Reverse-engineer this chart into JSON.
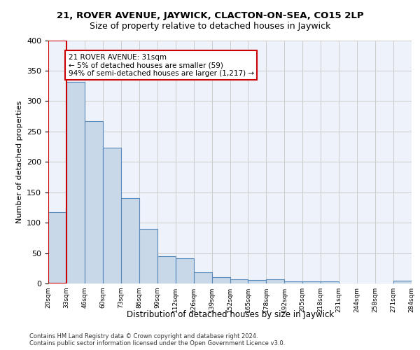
{
  "title1": "21, ROVER AVENUE, JAYWICK, CLACTON-ON-SEA, CO15 2LP",
  "title2": "Size of property relative to detached houses in Jaywick",
  "xlabel": "Distribution of detached houses by size in Jaywick",
  "ylabel": "Number of detached properties",
  "bin_labels": [
    "20sqm",
    "33sqm",
    "46sqm",
    "60sqm",
    "73sqm",
    "86sqm",
    "99sqm",
    "112sqm",
    "126sqm",
    "139sqm",
    "152sqm",
    "165sqm",
    "178sqm",
    "192sqm",
    "205sqm",
    "218sqm",
    "231sqm",
    "244sqm",
    "258sqm",
    "271sqm",
    "284sqm"
  ],
  "bar_values": [
    117,
    332,
    267,
    223,
    141,
    90,
    45,
    42,
    18,
    10,
    7,
    6,
    7,
    4,
    3,
    4,
    0,
    0,
    0,
    5
  ],
  "bar_color": "#c8d8e8",
  "bar_edge_color": "#5588bb",
  "highlight_color": "#cc0000",
  "annotation_text": "21 ROVER AVENUE: 31sqm\n← 5% of detached houses are smaller (59)\n94% of semi-detached houses are larger (1,217) →",
  "annotation_box_color": "#ffffff",
  "annotation_box_edge": "#cc0000",
  "grid_color": "#cccccc",
  "background_color": "#eef2fa",
  "footer_text": "Contains HM Land Registry data © Crown copyright and database right 2024.\nContains public sector information licensed under the Open Government Licence v3.0.",
  "ylim": [
    0,
    400
  ],
  "yticks": [
    0,
    50,
    100,
    150,
    200,
    250,
    300,
    350,
    400
  ]
}
